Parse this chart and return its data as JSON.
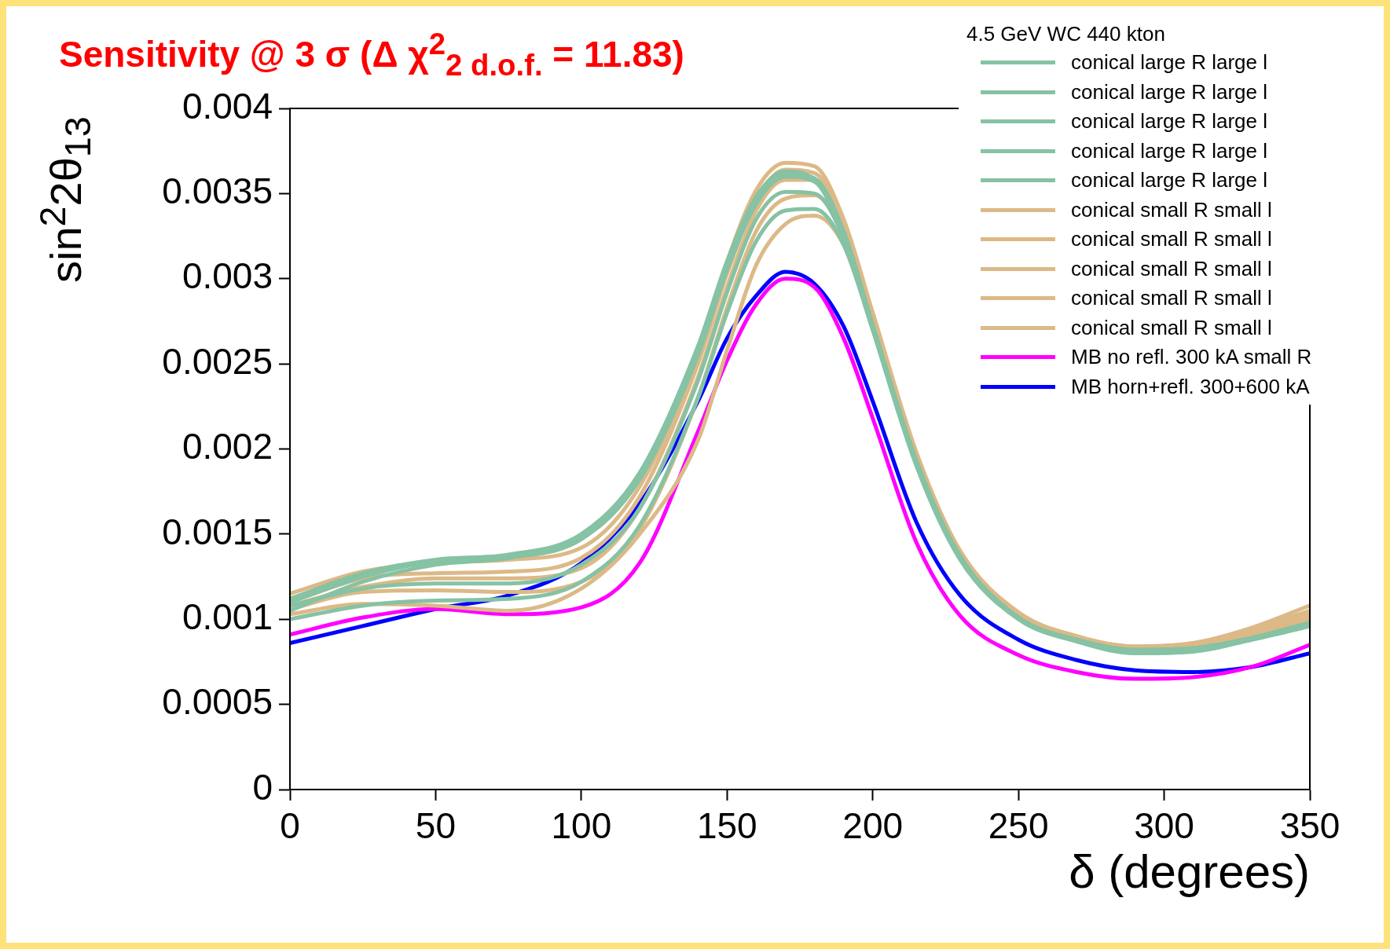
{
  "chart_data": {
    "type": "line",
    "title": "Sensitivity @ 3 σ (Δ χ$^{2}$$_{2 d.o.f.}$ = 11.83)",
    "xlabel": "δ (degrees)",
    "ylabel": "sin$^{2}$2θ$_{13}$",
    "legend_title": "4.5 GeV WC 440 kton",
    "legend": "top right",
    "grid": false,
    "marker": "none",
    "line_style": "solid",
    "x": [
      0,
      25,
      50,
      75,
      100,
      120,
      140,
      150,
      160,
      170,
      180,
      190,
      200,
      215,
      230,
      250,
      270,
      290,
      310,
      330,
      350
    ],
    "xlim": [
      0,
      350
    ],
    "xticks": [
      0,
      50,
      100,
      150,
      200,
      250,
      300,
      350
    ],
    "ylim": [
      0,
      0.004
    ],
    "yticks": [
      0,
      0.0005,
      0.001,
      0.0015,
      0.002,
      0.0025,
      0.003,
      0.0035,
      0.004
    ],
    "series": [
      {
        "name": "conical large R large l",
        "color": "#86c2a4",
        "values": [
          0.0011,
          0.00125,
          0.00134,
          0.00137,
          0.00148,
          0.00185,
          0.0026,
          0.0031,
          0.00348,
          0.00363,
          0.00358,
          0.00325,
          0.0027,
          0.0019,
          0.00135,
          0.001,
          0.00087,
          0.00081,
          0.00082,
          0.00088,
          0.00096
        ]
      },
      {
        "name": "conical large R large l",
        "color": "#86c2a4",
        "values": [
          0.00105,
          0.00122,
          0.00132,
          0.00136,
          0.00147,
          0.00182,
          0.00255,
          0.00305,
          0.00344,
          0.0036,
          0.00357,
          0.00326,
          0.00272,
          0.00192,
          0.00136,
          0.00101,
          0.00087,
          0.00081,
          0.00082,
          0.00089,
          0.00098
        ]
      },
      {
        "name": "conical large R large l",
        "color": "#86c2a4",
        "values": [
          0.00108,
          0.00118,
          0.00121,
          0.00121,
          0.00132,
          0.00165,
          0.0024,
          0.00292,
          0.00335,
          0.00351,
          0.0035,
          0.00324,
          0.00272,
          0.00193,
          0.00137,
          0.00101,
          0.00088,
          0.00082,
          0.00083,
          0.00089,
          0.00097
        ]
      },
      {
        "name": "conical large R large l",
        "color": "#86c2a4",
        "values": [
          0.001,
          0.00108,
          0.00111,
          0.00112,
          0.00122,
          0.00155,
          0.0023,
          0.0028,
          0.00322,
          0.0034,
          0.00341,
          0.0032,
          0.0027,
          0.00192,
          0.00137,
          0.00101,
          0.00087,
          0.0008,
          0.00081,
          0.00088,
          0.00096
        ]
      },
      {
        "name": "conical large R large l",
        "color": "#86c2a4",
        "values": [
          0.00112,
          0.00127,
          0.00135,
          0.00138,
          0.0015,
          0.00186,
          0.0026,
          0.0031,
          0.00348,
          0.00362,
          0.00359,
          0.00328,
          0.00273,
          0.00193,
          0.00137,
          0.00101,
          0.00088,
          0.00082,
          0.00083,
          0.00089,
          0.00097
        ]
      },
      {
        "name": "conical small R small l",
        "color": "#dcb987",
        "values": [
          0.00115,
          0.00128,
          0.00133,
          0.00135,
          0.00142,
          0.00178,
          0.00255,
          0.0031,
          0.00352,
          0.00368,
          0.00366,
          0.00335,
          0.0028,
          0.00198,
          0.0014,
          0.00104,
          0.0009,
          0.00084,
          0.00086,
          0.00095,
          0.00108
        ]
      },
      {
        "name": "conical small R small l",
        "color": "#dcb987",
        "values": [
          0.0011,
          0.00124,
          0.00127,
          0.00128,
          0.00136,
          0.00172,
          0.0025,
          0.00303,
          0.00346,
          0.00364,
          0.00362,
          0.00333,
          0.00279,
          0.00197,
          0.0014,
          0.00104,
          0.0009,
          0.00084,
          0.00086,
          0.00094,
          0.00105
        ]
      },
      {
        "name": "conical small R small l",
        "color": "#dcb987",
        "values": [
          0.00108,
          0.00119,
          0.00124,
          0.00124,
          0.0013,
          0.00165,
          0.00242,
          0.00295,
          0.0034,
          0.00358,
          0.00358,
          0.00332,
          0.00278,
          0.00197,
          0.0014,
          0.00103,
          0.0009,
          0.00083,
          0.00085,
          0.00093,
          0.00103
        ]
      },
      {
        "name": "conical small R small l",
        "color": "#dcb987",
        "values": [
          0.00106,
          0.00116,
          0.00117,
          0.00116,
          0.00122,
          0.00153,
          0.0023,
          0.00283,
          0.00328,
          0.00347,
          0.00349,
          0.00327,
          0.00276,
          0.00196,
          0.00139,
          0.00103,
          0.00089,
          0.00083,
          0.00084,
          0.00092,
          0.00101
        ]
      },
      {
        "name": "conical small R small l",
        "color": "#dcb987",
        "values": [
          0.00103,
          0.00109,
          0.00108,
          0.00105,
          0.00118,
          0.0015,
          0.00205,
          0.00258,
          0.00308,
          0.00332,
          0.00337,
          0.0032,
          0.00273,
          0.00195,
          0.00138,
          0.00102,
          0.00089,
          0.00083,
          0.00084,
          0.00091,
          0.001
        ]
      },
      {
        "name": "MB no refl. 300 kA small R",
        "color": "#ff00ff",
        "values": [
          0.00091,
          0.00101,
          0.00106,
          0.00103,
          0.00107,
          0.00133,
          0.0021,
          0.00252,
          0.00285,
          0.003,
          0.00295,
          0.00265,
          0.00218,
          0.00145,
          0.00102,
          0.00079,
          0.00069,
          0.00065,
          0.00066,
          0.00072,
          0.00085
        ]
      },
      {
        "name": "MB horn+refl. 300+600 kA",
        "color": "#0000ff",
        "values": [
          0.00086,
          0.00096,
          0.00106,
          0.00114,
          0.00133,
          0.00168,
          0.00228,
          0.00265,
          0.0029,
          0.00304,
          0.00297,
          0.00272,
          0.00228,
          0.00157,
          0.00114,
          0.00088,
          0.00076,
          0.0007,
          0.00069,
          0.00072,
          0.0008
        ]
      }
    ]
  }
}
